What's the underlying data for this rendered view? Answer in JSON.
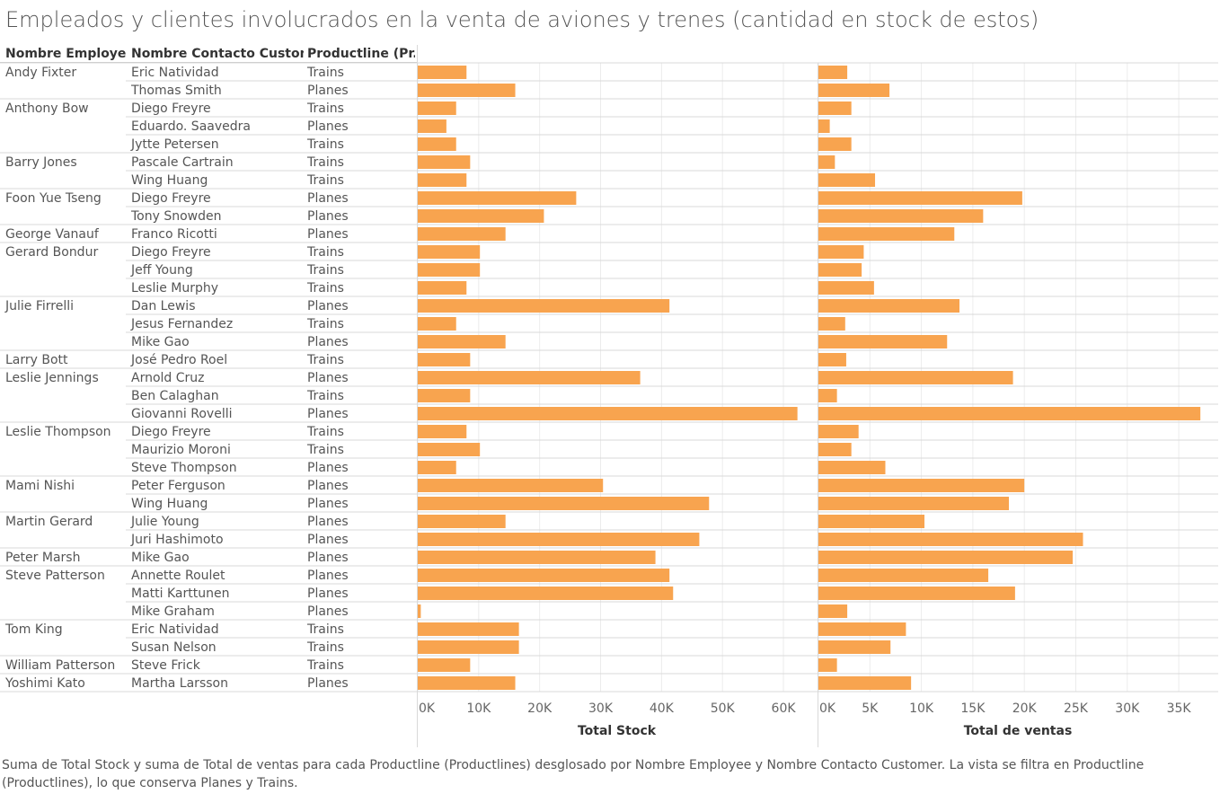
{
  "title": "Empleados y clientes involucrados en la venta de aviones y trenes (cantidad en stock de estos)",
  "headers": {
    "employee": "Nombre Employee",
    "contact": "Nombre Contacto Custom..",
    "productline": "Productline (Pr.."
  },
  "caption": "Suma de Total Stock y suma de Total de ventas para cada Productline (Productlines) desglosado por Nombre Employee y Nombre Contacto Customer. La vista se filtra en Productline (Productlines), lo que conserva Planes y Trains.",
  "bar_color": "#F8A44F",
  "chart_data": {
    "type": "bar",
    "orientation": "horizontal",
    "series": [
      {
        "name": "Total Stock",
        "xlabel": "Total Stock",
        "xlim": [
          0,
          62500
        ],
        "ticks": [
          0,
          10000,
          20000,
          30000,
          40000,
          50000,
          60000
        ],
        "tick_labels": [
          "0K",
          "10K",
          "20K",
          "30K",
          "40K",
          "50K",
          "60K"
        ]
      },
      {
        "name": "Total de ventas",
        "xlabel": "Total de ventas",
        "xlim": [
          0,
          37000
        ],
        "ticks": [
          0,
          5000,
          10000,
          15000,
          20000,
          25000,
          30000,
          35000
        ],
        "tick_labels": [
          "0K",
          "5K",
          "10K",
          "15K",
          "20K",
          "25K",
          "30K",
          "35K"
        ]
      }
    ],
    "rows": [
      {
        "employee": "Andy Fixter",
        "contact": "Eric Natividad",
        "productline": "Trains",
        "stock": 8000,
        "ventas": 2800
      },
      {
        "employee": "",
        "contact": "Thomas Smith",
        "productline": "Planes",
        "stock": 16000,
        "ventas": 6900
      },
      {
        "employee": "Anthony Bow",
        "contact": "Diego Freyre",
        "productline": "Trains",
        "stock": 6300,
        "ventas": 3200
      },
      {
        "employee": "",
        "contact": "Eduardo. Saavedra",
        "productline": "Planes",
        "stock": 4700,
        "ventas": 1100
      },
      {
        "employee": "",
        "contact": "Jytte Petersen",
        "productline": "Trains",
        "stock": 6300,
        "ventas": 3200
      },
      {
        "employee": "Barry Jones",
        "contact": "Pascale Cartrain",
        "productline": "Trains",
        "stock": 8600,
        "ventas": 1600
      },
      {
        "employee": "",
        "contact": "Wing Huang",
        "productline": "Trains",
        "stock": 8000,
        "ventas": 5500
      },
      {
        "employee": "Foon Yue Tseng",
        "contact": "Diego Freyre",
        "productline": "Planes",
        "stock": 26000,
        "ventas": 19800
      },
      {
        "employee": "",
        "contact": "Tony Snowden",
        "productline": "Planes",
        "stock": 20700,
        "ventas": 16000
      },
      {
        "employee": "George Vanauf",
        "contact": "Franco Ricotti",
        "productline": "Planes",
        "stock": 14400,
        "ventas": 13200
      },
      {
        "employee": "Gerard Bondur",
        "contact": "Diego Freyre",
        "productline": "Trains",
        "stock": 10200,
        "ventas": 4400
      },
      {
        "employee": "",
        "contact": "Jeff Young",
        "productline": "Trains",
        "stock": 10200,
        "ventas": 4200
      },
      {
        "employee": "",
        "contact": "Leslie Murphy",
        "productline": "Trains",
        "stock": 8000,
        "ventas": 5400
      },
      {
        "employee": "Julie Firrelli",
        "contact": "Dan Lewis",
        "productline": "Planes",
        "stock": 41300,
        "ventas": 13700
      },
      {
        "employee": "",
        "contact": "Jesus Fernandez",
        "productline": "Trains",
        "stock": 6300,
        "ventas": 2600
      },
      {
        "employee": "",
        "contact": "Mike Gao",
        "productline": "Planes",
        "stock": 14400,
        "ventas": 12500
      },
      {
        "employee": "Larry Bott",
        "contact": "José Pedro Roel",
        "productline": "Trains",
        "stock": 8600,
        "ventas": 2700
      },
      {
        "employee": "Leslie Jennings",
        "contact": "Arnold Cruz",
        "productline": "Planes",
        "stock": 36500,
        "ventas": 18900
      },
      {
        "employee": "",
        "contact": "Ben Calaghan",
        "productline": "Trains",
        "stock": 8600,
        "ventas": 1800
      },
      {
        "employee": "",
        "contact": "Giovanni Rovelli",
        "productline": "Planes",
        "stock": 62300,
        "ventas": 37100
      },
      {
        "employee": "Leslie Thompson",
        "contact": "Diego Freyre",
        "productline": "Trains",
        "stock": 8000,
        "ventas": 3900
      },
      {
        "employee": "",
        "contact": "Maurizio Moroni",
        "productline": "Trains",
        "stock": 10200,
        "ventas": 3200
      },
      {
        "employee": "",
        "contact": "Steve Thompson",
        "productline": "Planes",
        "stock": 6300,
        "ventas": 6500
      },
      {
        "employee": "Mami Nishi",
        "contact": "Peter Ferguson",
        "productline": "Planes",
        "stock": 30400,
        "ventas": 20000
      },
      {
        "employee": "",
        "contact": "Wing Huang",
        "productline": "Planes",
        "stock": 47800,
        "ventas": 18500
      },
      {
        "employee": "Martin Gerard",
        "contact": "Julie Young",
        "productline": "Planes",
        "stock": 14400,
        "ventas": 10300
      },
      {
        "employee": "",
        "contact": "Juri Hashimoto",
        "productline": "Planes",
        "stock": 46200,
        "ventas": 25700
      },
      {
        "employee": "Peter Marsh",
        "contact": "Mike Gao",
        "productline": "Planes",
        "stock": 39000,
        "ventas": 24700
      },
      {
        "employee": "Steve Patterson",
        "contact": "Annette Roulet",
        "productline": "Planes",
        "stock": 41300,
        "ventas": 16500
      },
      {
        "employee": "",
        "contact": "Matti Karttunen",
        "productline": "Planes",
        "stock": 41900,
        "ventas": 19100
      },
      {
        "employee": "",
        "contact": "Mike Graham",
        "productline": "Planes",
        "stock": 500,
        "ventas": 2800
      },
      {
        "employee": "Tom King",
        "contact": "Eric Natividad",
        "productline": "Trains",
        "stock": 16600,
        "ventas": 8500
      },
      {
        "employee": "",
        "contact": "Susan Nelson",
        "productline": "Trains",
        "stock": 16600,
        "ventas": 7000
      },
      {
        "employee": "William Patterson",
        "contact": "Steve Frick",
        "productline": "Trains",
        "stock": 8600,
        "ventas": 1800
      },
      {
        "employee": "Yoshimi Kato",
        "contact": "Martha Larsson",
        "productline": "Planes",
        "stock": 16000,
        "ventas": 9000
      }
    ]
  }
}
